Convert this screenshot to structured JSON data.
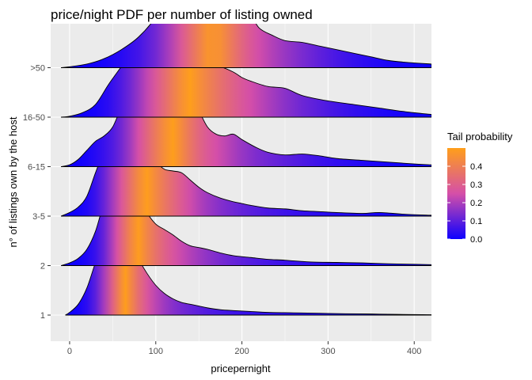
{
  "chart_data": {
    "type": "ridgeline-density",
    "title": "price/night PDF per number of listing owned",
    "xlabel": "pricepernight",
    "ylabel": "n° of listings own by the host",
    "xlim": [
      -22,
      420
    ],
    "x_ticks": [
      0,
      100,
      200,
      300,
      400
    ],
    "x_tick_labels": [
      "0",
      "100",
      "200",
      "300",
      "400"
    ],
    "fill_mapping": "tail probability",
    "legend": {
      "title": "Tail probability",
      "placement": "right",
      "ticks": [
        0.0,
        0.1,
        0.2,
        0.3,
        0.4
      ],
      "tick_labels": [
        "0.0",
        "0.1",
        "0.2",
        "0.3",
        "0.4"
      ],
      "range": [
        0,
        0.5
      ],
      "colors": [
        "#0D00FF",
        "#D54FA8",
        "#FF9F1A"
      ]
    },
    "groups": [
      {
        "label": "1",
        "x": [
          -5,
          0,
          10,
          20,
          30,
          40,
          50,
          55,
          60,
          65,
          70,
          80,
          90,
          100,
          110,
          120,
          130,
          140,
          150,
          160,
          175,
          190,
          210,
          230,
          260,
          290,
          320,
          350,
          380,
          420
        ],
        "density": [
          0,
          0.03,
          0.12,
          0.3,
          0.58,
          0.82,
          0.96,
          1.0,
          0.97,
          0.9,
          0.8,
          0.62,
          0.46,
          0.33,
          0.24,
          0.18,
          0.14,
          0.12,
          0.1,
          0.08,
          0.06,
          0.05,
          0.04,
          0.03,
          0.025,
          0.02,
          0.015,
          0.012,
          0.008,
          0.004
        ]
      },
      {
        "label": "2",
        "x": [
          -10,
          0,
          10,
          20,
          30,
          40,
          50,
          55,
          60,
          70,
          80,
          90,
          100,
          110,
          120,
          130,
          140,
          150,
          160,
          175,
          190,
          210,
          230,
          250,
          280,
          310,
          340,
          370,
          400,
          420
        ],
        "density": [
          0,
          0.03,
          0.08,
          0.18,
          0.38,
          0.7,
          0.92,
          0.97,
          0.95,
          0.88,
          0.74,
          0.58,
          0.46,
          0.4,
          0.34,
          0.27,
          0.22,
          0.2,
          0.18,
          0.14,
          0.11,
          0.09,
          0.07,
          0.06,
          0.04,
          0.035,
          0.03,
          0.02,
          0.015,
          0.01
        ]
      },
      {
        "label": "3-5",
        "x": [
          -10,
          0,
          10,
          20,
          30,
          40,
          50,
          60,
          70,
          80,
          90,
          100,
          110,
          120,
          130,
          140,
          150,
          160,
          175,
          190,
          200,
          210,
          230,
          250,
          270,
          290,
          310,
          340,
          360,
          390,
          420
        ],
        "density": [
          0,
          0.04,
          0.1,
          0.22,
          0.48,
          0.72,
          0.86,
          0.92,
          0.88,
          0.8,
          0.7,
          0.6,
          0.52,
          0.5,
          0.48,
          0.4,
          0.32,
          0.26,
          0.2,
          0.16,
          0.14,
          0.12,
          0.09,
          0.08,
          0.06,
          0.05,
          0.04,
          0.03,
          0.04,
          0.02,
          0.01
        ]
      },
      {
        "label": "6-15",
        "x": [
          -10,
          0,
          10,
          20,
          30,
          40,
          50,
          60,
          70,
          80,
          90,
          100,
          110,
          120,
          130,
          140,
          150,
          160,
          170,
          180,
          190,
          200,
          215,
          230,
          250,
          270,
          290,
          310,
          340,
          370,
          400,
          420
        ],
        "density": [
          0,
          0.02,
          0.08,
          0.18,
          0.28,
          0.34,
          0.44,
          0.66,
          0.86,
          0.97,
          0.92,
          0.8,
          0.74,
          0.8,
          0.84,
          0.78,
          0.62,
          0.44,
          0.36,
          0.34,
          0.36,
          0.3,
          0.22,
          0.16,
          0.13,
          0.14,
          0.12,
          0.09,
          0.07,
          0.05,
          0.03,
          0.02
        ]
      },
      {
        "label": "16-50",
        "x": [
          -10,
          0,
          15,
          30,
          45,
          60,
          70,
          80,
          90,
          100,
          110,
          120,
          130,
          140,
          150,
          160,
          175,
          190,
          200,
          210,
          230,
          250,
          270,
          300,
          330,
          360,
          390,
          420
        ],
        "density": [
          0,
          0.01,
          0.05,
          0.14,
          0.36,
          0.56,
          0.7,
          0.8,
          0.84,
          0.86,
          0.88,
          0.92,
          0.84,
          0.72,
          0.62,
          0.58,
          0.56,
          0.5,
          0.44,
          0.4,
          0.34,
          0.32,
          0.24,
          0.18,
          0.14,
          0.1,
          0.06,
          0.03
        ]
      },
      {
        "label": ">50",
        "x": [
          -10,
          0,
          20,
          40,
          60,
          80,
          100,
          115,
          130,
          145,
          160,
          175,
          190,
          200,
          210,
          220,
          235,
          250,
          270,
          290,
          310,
          330,
          350,
          370,
          390,
          420
        ],
        "density": [
          0,
          0.01,
          0.04,
          0.1,
          0.2,
          0.34,
          0.56,
          0.82,
          0.96,
          0.97,
          0.86,
          0.84,
          0.8,
          0.74,
          0.6,
          0.44,
          0.36,
          0.3,
          0.28,
          0.24,
          0.2,
          0.16,
          0.12,
          0.08,
          0.06,
          0.04
        ]
      }
    ]
  }
}
